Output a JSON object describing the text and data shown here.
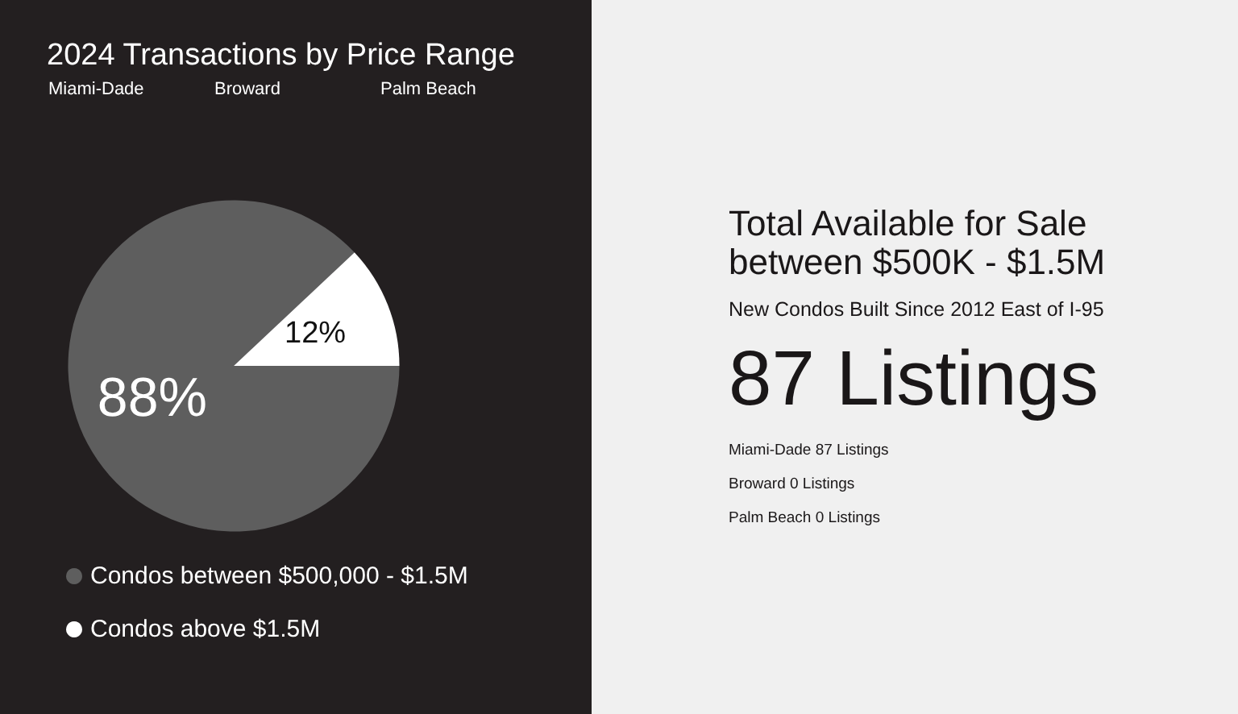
{
  "chart_data": [
    {
      "type": "pie",
      "title": "2024 Transactions by Price Range",
      "annotations": [
        "Miami-Dade",
        "Broward",
        "Palm Beach"
      ],
      "categories": [
        "Condos between $500,000 - $1.5M",
        "Condos above $1.5M"
      ],
      "values": [
        88,
        12
      ],
      "colors": [
        "#5e5e5e",
        "#ffffff"
      ],
      "value_labels": [
        "88%",
        "12%"
      ],
      "legend": "bottom"
    },
    {
      "type": "other",
      "title": "Total Available for Sale\nbetween $500K - $1.5M",
      "subtitle": "New Condos Built Since 2012 East of I-95",
      "annotations": [
        "87 Listings",
        "Miami-Dade 87 Listings",
        "Broward 0 Listings",
        "Palm Beach 0 Listings"
      ]
    }
  ]
}
